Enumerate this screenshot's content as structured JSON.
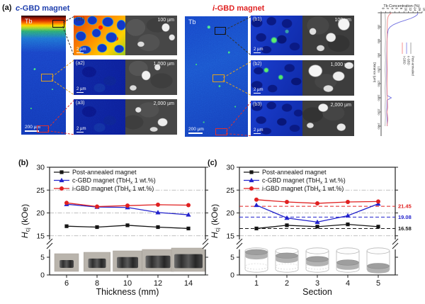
{
  "figure": {
    "panel_a_label": "(a)",
    "panel_b_label": "(b)",
    "panel_c_label": "(c)"
  },
  "panel_a": {
    "c_title": {
      "italic": "c",
      "rest": "-GBD magnet"
    },
    "i_title": {
      "italic": "i",
      "rest": "-GBD magnet"
    },
    "map_element": "Tb",
    "scalebar_map": "200 µm",
    "scalebar_sub": "2 µm",
    "c_subpanels": [
      {
        "id": "(a1)",
        "depth": "100 µm"
      },
      {
        "id": "(a2)",
        "depth": "1,000 µm"
      },
      {
        "id": "(a3)",
        "depth": "2,000 µm"
      }
    ],
    "i_subpanels": [
      {
        "id": "(b1)",
        "depth": "100 µm"
      },
      {
        "id": "(b2)",
        "depth": "1,000 µm"
      },
      {
        "id": "(b3)",
        "depth": "2,000 µm"
      }
    ]
  },
  "chart_data": [
    {
      "id": "panel-b",
      "type": "line",
      "xlabel": "Thickness (mm)",
      "ylabel": {
        "italic": "H",
        "sub": "cj",
        "rest": " (kOe)"
      },
      "categories": [
        6,
        8,
        10,
        12,
        14
      ],
      "y_ticks_upper": [
        15,
        20,
        25,
        30
      ],
      "y_ticks_lower": [
        0,
        5
      ],
      "gridlines": [
        15,
        20,
        25
      ],
      "axis_break": true,
      "insets": "photos",
      "series": [
        {
          "name_pre": "Post-annealed magnet",
          "name_sub": "",
          "name_post": "",
          "color": "#151515",
          "marker": "square",
          "values": [
            17.1,
            16.9,
            17.3,
            16.9,
            16.6
          ]
        },
        {
          "name_pre": "c-GBD magnet (TbH",
          "name_sub": "x",
          "name_post": " 1 wt.%)",
          "color": "#2222cc",
          "marker": "triangle",
          "values": [
            21.9,
            21.3,
            21.2,
            20.1,
            19.6
          ]
        },
        {
          "name_pre": "i-GBD magnet (TbH",
          "name_sub": "x",
          "name_post": " 1 wt.%)",
          "color": "#e02020",
          "marker": "circle",
          "values": [
            22.2,
            21.4,
            21.6,
            21.8,
            21.7
          ]
        }
      ],
      "ref_lines": []
    },
    {
      "id": "panel-c",
      "type": "line",
      "xlabel": "Section",
      "ylabel": {
        "italic": "H",
        "sub": "cj",
        "rest": " (kOe)"
      },
      "categories": [
        1,
        2,
        3,
        4,
        5
      ],
      "y_ticks_upper": [
        15,
        20,
        25,
        30
      ],
      "y_ticks_lower": [
        0,
        5
      ],
      "gridlines": [
        15,
        20,
        25
      ],
      "axis_break": true,
      "insets": "cylinders",
      "series": [
        {
          "name_pre": "Post-annealed magnet",
          "name_sub": "",
          "name_post": "",
          "color": "#151515",
          "marker": "square",
          "values": [
            16.6,
            17.3,
            17.0,
            17.5,
            17.0
          ]
        },
        {
          "name_pre": "c-GBD magnet (TbH",
          "name_sub": "x",
          "name_post": " 1 wt.%)",
          "color": "#2222cc",
          "marker": "triangle",
          "values": [
            21.7,
            18.9,
            18.0,
            19.4,
            22.0
          ]
        },
        {
          "name_pre": "i-GBD magnet (TbH",
          "name_sub": "x",
          "name_post": " 1 wt.%)",
          "color": "#e02020",
          "marker": "circle",
          "values": [
            22.9,
            22.4,
            22.1,
            22.4,
            22.5
          ]
        }
      ],
      "ref_lines": [
        {
          "value": 21.45,
          "label": "21.45",
          "color": "#e02020"
        },
        {
          "value": 19.08,
          "label": "19.08",
          "color": "#2222cc"
        },
        {
          "value": 16.58,
          "label": "16.58",
          "color": "#151515"
        }
      ]
    },
    {
      "id": "tb-profile",
      "type": "line-profile",
      "title": "Tb Concentration (%)",
      "ylabel": "Distance (µm)",
      "conc_ticks": [
        0,
        2,
        4,
        6,
        8,
        10,
        12,
        14,
        16,
        18
      ],
      "dist_ticks": [
        0,
        300,
        600,
        900,
        1200,
        1500,
        1800,
        2100,
        2400
      ],
      "legend": [
        {
          "name": "i-GBD",
          "color": "#f49090"
        },
        {
          "name": "c-GBD",
          "color": "#9090e8"
        },
        {
          "name": "Post-annealed",
          "color": "#a0a0a0"
        }
      ],
      "series": [
        {
          "name": "Post-annealed",
          "color": "#8a8a8a",
          "width": 0.6,
          "points": [
            [
              0,
              1.8
            ],
            [
              200,
              1.9
            ],
            [
              400,
              1.8
            ],
            [
              600,
              1.9
            ],
            [
              800,
              1.8
            ],
            [
              1000,
              1.9
            ],
            [
              1200,
              1.8
            ],
            [
              1400,
              1.9
            ],
            [
              1600,
              1.8
            ],
            [
              1800,
              1.9
            ],
            [
              2000,
              1.8
            ],
            [
              2200,
              1.9
            ],
            [
              2400,
              1.8
            ]
          ]
        },
        {
          "name": "c-GBD",
          "color": "#7070e0",
          "width": 0.9,
          "points": [
            [
              0,
              16.2
            ],
            [
              40,
              15.9
            ],
            [
              80,
              14.8
            ],
            [
              120,
              13.0
            ],
            [
              160,
              10.5
            ],
            [
              200,
              8.0
            ],
            [
              250,
              5.5
            ],
            [
              300,
              4.0
            ],
            [
              350,
              3.2
            ],
            [
              450,
              2.8
            ],
            [
              600,
              2.6
            ],
            [
              900,
              2.5
            ],
            [
              1200,
              2.5
            ],
            [
              1500,
              2.5
            ],
            [
              1750,
              2.6
            ],
            [
              1800,
              4.5
            ],
            [
              1850,
              2.6
            ],
            [
              2100,
              2.5
            ],
            [
              2400,
              2.7
            ]
          ]
        },
        {
          "name": "i-GBD",
          "color": "#f08585",
          "width": 0.9,
          "points": [
            [
              0,
              4.6
            ],
            [
              40,
              3.6
            ],
            [
              80,
              3.1
            ],
            [
              150,
              2.8
            ],
            [
              300,
              2.7
            ],
            [
              600,
              2.6
            ],
            [
              900,
              2.6
            ],
            [
              1200,
              2.7
            ],
            [
              1500,
              2.6
            ],
            [
              1800,
              2.7
            ],
            [
              2000,
              2.9
            ],
            [
              2100,
              2.6
            ],
            [
              2250,
              3.0
            ],
            [
              2400,
              2.6
            ]
          ]
        }
      ]
    }
  ]
}
